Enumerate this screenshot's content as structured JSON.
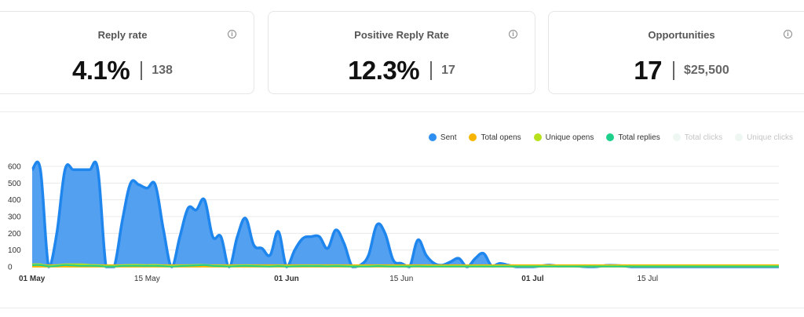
{
  "cards": [
    {
      "title": "Reply rate",
      "value": "4.1%",
      "secondary": "138",
      "info_icon": "info-icon"
    },
    {
      "title": "Positive Reply Rate",
      "value": "12.3%",
      "secondary": "17",
      "info_icon": "info-icon"
    },
    {
      "title": "Opportunities",
      "value": "17",
      "secondary": "$25,500",
      "info_icon": "info-icon"
    }
  ],
  "info_glyph": "i",
  "legend": [
    {
      "label": "Sent",
      "color": "#2d8ff0",
      "active": true
    },
    {
      "label": "Total opens",
      "color": "#f7b500",
      "active": true
    },
    {
      "label": "Unique opens",
      "color": "#b7e01d",
      "active": true
    },
    {
      "label": "Total replies",
      "color": "#1fcf8c",
      "active": true
    },
    {
      "label": "Total clicks",
      "color": "#eef7f2",
      "active": false
    },
    {
      "label": "Unique clicks",
      "color": "#eef7f2",
      "active": false
    }
  ],
  "chart_data": {
    "type": "area",
    "title": "",
    "xlabel": "",
    "ylabel": "",
    "ylim": [
      0,
      600
    ],
    "yticks": [
      0,
      100,
      200,
      300,
      400,
      500,
      600
    ],
    "x_start": "2024-05-01",
    "x_end": "2024-07-31",
    "xticks": [
      {
        "label": "01 May",
        "day": 0,
        "major": true
      },
      {
        "label": "15 May",
        "day": 14,
        "major": false
      },
      {
        "label": "01 Jun",
        "day": 31,
        "major": true
      },
      {
        "label": "15 Jun",
        "day": 45,
        "major": false
      },
      {
        "label": "01 Jul",
        "day": 61,
        "major": true
      },
      {
        "label": "15 Jul",
        "day": 75,
        "major": false
      }
    ],
    "grid": true,
    "legend_position": "top-right",
    "series": [
      {
        "name": "Sent",
        "color": "#2d8ff0",
        "values": [
          580,
          580,
          0,
          200,
          580,
          580,
          580,
          580,
          580,
          0,
          0,
          280,
          500,
          490,
          470,
          490,
          220,
          0,
          180,
          350,
          340,
          400,
          180,
          180,
          0,
          180,
          290,
          130,
          110,
          70,
          210,
          0,
          100,
          170,
          180,
          180,
          110,
          220,
          140,
          0,
          10,
          70,
          250,
          200,
          40,
          20,
          0,
          160,
          70,
          20,
          10,
          30,
          50,
          0,
          50,
          80,
          5,
          20,
          10,
          0,
          0,
          0,
          5,
          10,
          5,
          5,
          5,
          2,
          0,
          2,
          8,
          8,
          5,
          0,
          0,
          0,
          0,
          0,
          0,
          0,
          0,
          0,
          0,
          0,
          0,
          0,
          0,
          0,
          0,
          0,
          0,
          0
        ]
      },
      {
        "name": "Total opens",
        "color": "#f7b500",
        "values": [
          5,
          5,
          5,
          5,
          5,
          5,
          5,
          5,
          5,
          5,
          5,
          5,
          5,
          5,
          5,
          5,
          5,
          5,
          5,
          5,
          5,
          5,
          5,
          5,
          5,
          5,
          5,
          5,
          5,
          5,
          5,
          5,
          5,
          5,
          5,
          5,
          5,
          5,
          5,
          5,
          5,
          5,
          5,
          5,
          5,
          5,
          5,
          5,
          5,
          5,
          5,
          5,
          5,
          5,
          5,
          5,
          5,
          5,
          5,
          5,
          5,
          5,
          5,
          5,
          5,
          5,
          5,
          5,
          5,
          5,
          5,
          5,
          5,
          5,
          5,
          5,
          5,
          5,
          5,
          5,
          5,
          5,
          5,
          5,
          5,
          5,
          5,
          5,
          5,
          5,
          5,
          5
        ]
      },
      {
        "name": "Unique opens",
        "color": "#b7e01d",
        "values": [
          15,
          15,
          5,
          10,
          15,
          15,
          15,
          12,
          10,
          5,
          5,
          10,
          12,
          12,
          10,
          12,
          8,
          5,
          8,
          10,
          12,
          12,
          8,
          8,
          5,
          8,
          10,
          8,
          6,
          5,
          8,
          5,
          6,
          8,
          8,
          8,
          6,
          8,
          6,
          5,
          5,
          5,
          8,
          6,
          5,
          5,
          5,
          6,
          5,
          5,
          5,
          5,
          5,
          5,
          5,
          5,
          5,
          5,
          5,
          5,
          5,
          5,
          5,
          5,
          5,
          5,
          5,
          5,
          5,
          5,
          5,
          5,
          5,
          5,
          5,
          5,
          5,
          5,
          5,
          5,
          5,
          5,
          5,
          5,
          5,
          5,
          5,
          5,
          5,
          5,
          5,
          5
        ]
      },
      {
        "name": "Total replies",
        "color": "#1fcf8c",
        "values": [
          10,
          10,
          3,
          5,
          10,
          8,
          6,
          6,
          5,
          2,
          2,
          5,
          6,
          6,
          5,
          6,
          4,
          2,
          4,
          6,
          8,
          10,
          5,
          4,
          2,
          4,
          5,
          4,
          3,
          2,
          4,
          2,
          3,
          4,
          4,
          4,
          3,
          4,
          3,
          2,
          2,
          2,
          4,
          3,
          2,
          2,
          2,
          3,
          2,
          2,
          2,
          2,
          2,
          2,
          2,
          2,
          2,
          2,
          2,
          2,
          2,
          2,
          2,
          2,
          2,
          2,
          2,
          2,
          2,
          2,
          2,
          2,
          2,
          2,
          2,
          2,
          2,
          2,
          2,
          2,
          2,
          2,
          2,
          2,
          2,
          2,
          2,
          2,
          2,
          2,
          2,
          2
        ]
      }
    ]
  }
}
